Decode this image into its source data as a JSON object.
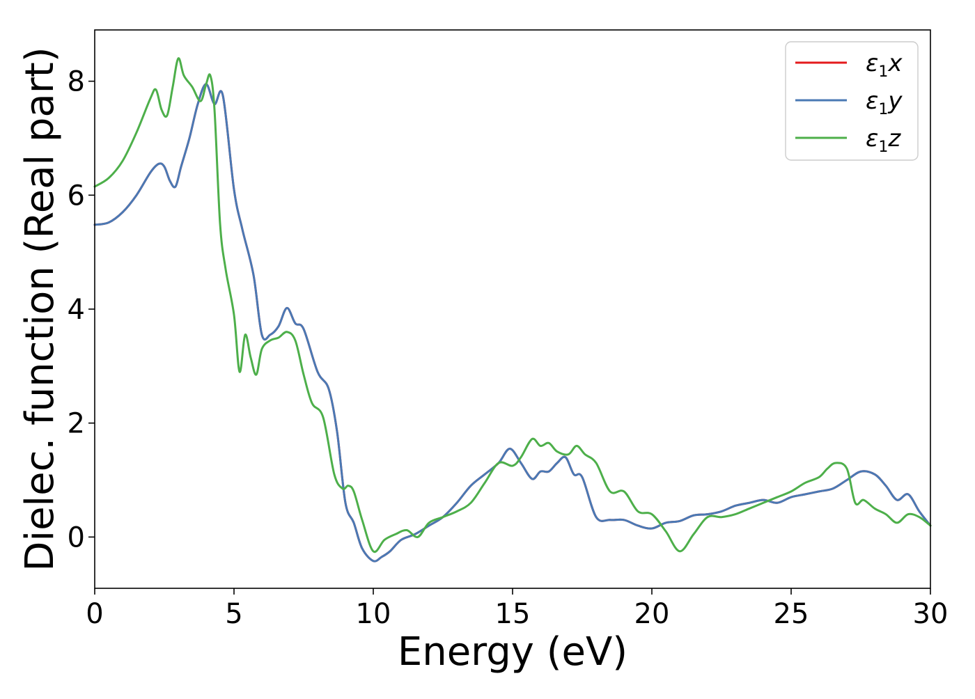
{
  "chart_data": {
    "type": "line",
    "title": "",
    "xlabel": "Energy (eV)",
    "ylabel": "Dielec. function (Real part)",
    "xlim": [
      0,
      30
    ],
    "ylim": [
      -0.9,
      8.9
    ],
    "xticks": [
      0,
      5,
      10,
      15,
      20,
      25,
      30
    ],
    "yticks": [
      0,
      2,
      4,
      6,
      8
    ],
    "xtick_labels": [
      "0",
      "5",
      "10",
      "15",
      "20",
      "25",
      "30"
    ],
    "ytick_labels": [
      "0",
      "2",
      "4",
      "6",
      "8"
    ],
    "grid": false,
    "legend": {
      "position": "top-right"
    },
    "series": [
      {
        "name": "ε₁x",
        "legend_base": "ε",
        "legend_sub": "1",
        "legend_tail": "x",
        "color": "#e41a1c",
        "x": [
          0,
          0.5,
          1,
          1.5,
          2,
          2.3,
          2.5,
          2.7,
          2.9,
          3.1,
          3.4,
          3.7,
          4,
          4.3,
          4.6,
          5,
          5.3,
          5.7,
          6,
          6.3,
          6.6,
          6.9,
          7.2,
          7.5,
          8,
          8.4,
          8.7,
          9,
          9.3,
          9.6,
          10,
          10.3,
          10.6,
          11,
          11.5,
          12,
          12.5,
          13,
          13.5,
          14,
          14.5,
          14.9,
          15.3,
          15.7,
          16,
          16.3,
          16.6,
          16.9,
          17.2,
          17.5,
          18,
          18.5,
          19,
          19.5,
          20,
          20.5,
          21,
          21.5,
          22,
          22.5,
          23,
          23.5,
          24,
          24.5,
          25,
          25.5,
          26,
          26.5,
          27,
          27.5,
          28,
          28.4,
          28.8,
          29.2,
          29.6,
          30
        ],
        "values": [
          5.48,
          5.52,
          5.7,
          6,
          6.4,
          6.55,
          6.5,
          6.25,
          6.15,
          6.5,
          7,
          7.6,
          7.95,
          7.6,
          7.75,
          6.1,
          5.4,
          4.6,
          3.55,
          3.55,
          3.7,
          4.02,
          3.75,
          3.65,
          2.9,
          2.6,
          1.85,
          0.6,
          0.25,
          -0.2,
          -0.42,
          -0.35,
          -0.25,
          -0.05,
          0.05,
          0.2,
          0.35,
          0.6,
          0.9,
          1.1,
          1.3,
          1.55,
          1.3,
          1.02,
          1.15,
          1.15,
          1.3,
          1.4,
          1.1,
          1.05,
          0.35,
          0.3,
          0.3,
          0.2,
          0.15,
          0.25,
          0.28,
          0.38,
          0.4,
          0.45,
          0.55,
          0.6,
          0.65,
          0.6,
          0.7,
          0.75,
          0.8,
          0.85,
          1,
          1.15,
          1.1,
          0.9,
          0.65,
          0.75,
          0.45,
          0.2
        ]
      },
      {
        "name": "ε₁y",
        "legend_base": "ε",
        "legend_sub": "1",
        "legend_tail": "y",
        "color": "#4a79b4",
        "x": [
          0,
          0.5,
          1,
          1.5,
          2,
          2.3,
          2.5,
          2.7,
          2.9,
          3.1,
          3.4,
          3.7,
          4,
          4.3,
          4.6,
          5,
          5.3,
          5.7,
          6,
          6.3,
          6.6,
          6.9,
          7.2,
          7.5,
          8,
          8.4,
          8.7,
          9,
          9.3,
          9.6,
          10,
          10.3,
          10.6,
          11,
          11.5,
          12,
          12.5,
          13,
          13.5,
          14,
          14.5,
          14.9,
          15.3,
          15.7,
          16,
          16.3,
          16.6,
          16.9,
          17.2,
          17.5,
          18,
          18.5,
          19,
          19.5,
          20,
          20.5,
          21,
          21.5,
          22,
          22.5,
          23,
          23.5,
          24,
          24.5,
          25,
          25.5,
          26,
          26.5,
          27,
          27.5,
          28,
          28.4,
          28.8,
          29.2,
          29.6,
          30
        ],
        "values": [
          5.48,
          5.52,
          5.7,
          6,
          6.4,
          6.55,
          6.5,
          6.25,
          6.15,
          6.5,
          7,
          7.6,
          7.95,
          7.6,
          7.75,
          6.1,
          5.4,
          4.6,
          3.55,
          3.55,
          3.7,
          4.02,
          3.75,
          3.65,
          2.9,
          2.6,
          1.85,
          0.6,
          0.25,
          -0.2,
          -0.42,
          -0.35,
          -0.25,
          -0.05,
          0.05,
          0.2,
          0.35,
          0.6,
          0.9,
          1.1,
          1.3,
          1.55,
          1.3,
          1.02,
          1.15,
          1.15,
          1.3,
          1.4,
          1.1,
          1.05,
          0.35,
          0.3,
          0.3,
          0.2,
          0.15,
          0.25,
          0.28,
          0.38,
          0.4,
          0.45,
          0.55,
          0.6,
          0.65,
          0.6,
          0.7,
          0.75,
          0.8,
          0.85,
          1,
          1.15,
          1.1,
          0.9,
          0.65,
          0.75,
          0.45,
          0.2
        ]
      },
      {
        "name": "ε₁z",
        "legend_base": "ε",
        "legend_sub": "1",
        "legend_tail": "z",
        "color": "#4daf4a",
        "x": [
          0,
          0.5,
          1,
          1.5,
          2,
          2.2,
          2.4,
          2.6,
          2.8,
          3,
          3.2,
          3.5,
          3.8,
          4,
          4.15,
          4.3,
          4.5,
          4.7,
          5,
          5.2,
          5.4,
          5.6,
          5.8,
          6,
          6.3,
          6.6,
          6.9,
          7.2,
          7.5,
          7.8,
          8.2,
          8.6,
          8.9,
          9.1,
          9.3,
          9.6,
          10,
          10.4,
          10.8,
          11.2,
          11.6,
          12,
          12.5,
          13,
          13.5,
          14,
          14.5,
          15,
          15.3,
          15.7,
          16,
          16.3,
          16.6,
          17,
          17.3,
          17.6,
          18,
          18.5,
          19,
          19.5,
          20,
          20.5,
          21,
          21.5,
          22,
          22.5,
          23,
          23.5,
          24,
          24.5,
          25,
          25.5,
          26,
          26.3,
          26.6,
          27,
          27.3,
          27.6,
          28,
          28.4,
          28.8,
          29.2,
          29.6,
          30
        ],
        "values": [
          6.15,
          6.3,
          6.6,
          7.1,
          7.7,
          7.85,
          7.5,
          7.4,
          7.9,
          8.4,
          8.1,
          7.9,
          7.65,
          7.95,
          8.1,
          7.5,
          5.5,
          4.7,
          3.9,
          2.9,
          3.55,
          3.15,
          2.85,
          3.3,
          3.45,
          3.5,
          3.6,
          3.45,
          2.85,
          2.35,
          2.1,
          1.1,
          0.85,
          0.9,
          0.8,
          0.3,
          -0.25,
          -0.05,
          0.05,
          0.12,
          0,
          0.25,
          0.35,
          0.45,
          0.6,
          0.95,
          1.3,
          1.25,
          1.4,
          1.72,
          1.6,
          1.65,
          1.5,
          1.45,
          1.6,
          1.45,
          1.3,
          0.8,
          0.8,
          0.45,
          0.4,
          0.1,
          -0.25,
          0.05,
          0.35,
          0.35,
          0.4,
          0.5,
          0.6,
          0.7,
          0.8,
          0.95,
          1.05,
          1.2,
          1.3,
          1.2,
          0.6,
          0.65,
          0.5,
          0.4,
          0.25,
          0.4,
          0.35,
          0.2
        ]
      }
    ]
  }
}
